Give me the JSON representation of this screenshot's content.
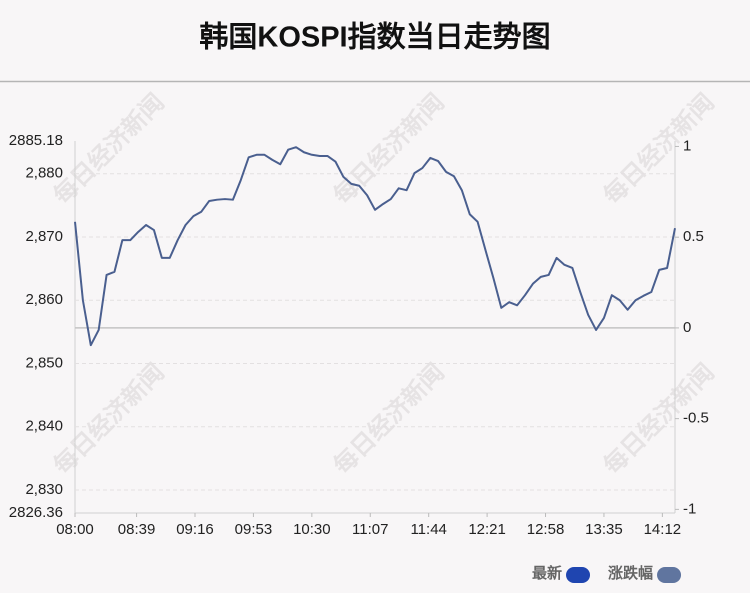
{
  "chart_data": {
    "type": "line",
    "title": "韩国KOSPI指数当日走势图",
    "watermark": "每日经济新闻",
    "x": [
      "08:00",
      "08:05",
      "08:10",
      "08:15",
      "08:20",
      "08:25",
      "08:30",
      "08:35",
      "08:40",
      "08:45",
      "08:50",
      "08:55",
      "09:00",
      "09:05",
      "09:10",
      "09:15",
      "09:20",
      "09:25",
      "09:30",
      "09:35",
      "09:40",
      "09:45",
      "09:50",
      "09:55",
      "10:00",
      "10:05",
      "10:10",
      "10:15",
      "10:20",
      "10:25",
      "10:30",
      "10:35",
      "10:40",
      "10:45",
      "10:50",
      "10:55",
      "11:00",
      "11:05",
      "11:10",
      "11:15",
      "11:20",
      "11:25",
      "11:30",
      "11:35",
      "11:40",
      "11:45",
      "11:50",
      "11:55",
      "12:00",
      "12:05",
      "12:10",
      "12:15",
      "12:20",
      "12:25",
      "12:30",
      "12:35",
      "12:40",
      "12:45",
      "12:50",
      "12:55",
      "13:00",
      "13:05",
      "13:10",
      "13:15",
      "13:20",
      "13:25",
      "13:30",
      "13:35",
      "13:40",
      "13:45",
      "13:50",
      "13:55",
      "14:00",
      "14:05",
      "14:10",
      "14:15",
      "14:20"
    ],
    "series": [
      {
        "name": "最新",
        "color": "#4a5f8f",
        "legend_color": "#1f45b0",
        "values": [
          2872.4,
          2860.0,
          2852.9,
          2855.3,
          2864.0,
          2864.5,
          2869.5,
          2869.5,
          2870.8,
          2871.9,
          2871.1,
          2866.7,
          2866.7,
          2869.5,
          2871.9,
          2873.3,
          2874.0,
          2875.7,
          2875.9,
          2876.0,
          2875.9,
          2879.0,
          2882.6,
          2883.0,
          2883.0,
          2882.2,
          2881.5,
          2883.8,
          2884.2,
          2883.4,
          2883.0,
          2882.8,
          2882.8,
          2881.9,
          2879.5,
          2878.4,
          2878.1,
          2876.6,
          2874.3,
          2875.2,
          2876.0,
          2877.7,
          2877.4,
          2880.1,
          2880.9,
          2882.5,
          2882.0,
          2880.3,
          2879.6,
          2877.4,
          2873.6,
          2872.4,
          2867.9,
          2863.5,
          2858.8,
          2859.7,
          2859.2,
          2860.8,
          2862.6,
          2863.7,
          2864.0,
          2866.7,
          2865.6,
          2865.1,
          2861.3,
          2857.7,
          2855.3,
          2857.2,
          2860.8,
          2860.0,
          2858.5,
          2860.0,
          2860.7,
          2861.3,
          2864.8,
          2865.1,
          2871.4
        ]
      }
    ],
    "legend": [
      {
        "name": "最新",
        "color": "#1f45b0"
      },
      {
        "name": "涨跌幅",
        "color": "#60759f"
      }
    ],
    "xlim": [
      "08:00",
      "14:20"
    ],
    "xticks": [
      "08:00",
      "08:39",
      "09:16",
      "09:53",
      "10:30",
      "11:07",
      "11:44",
      "12:21",
      "12:58",
      "13:35",
      "14:12"
    ],
    "ylim": [
      2826.36,
      2885.18
    ],
    "yticks": [
      2826.36,
      {
        "value": 2830,
        "label": "2,830"
      },
      {
        "value": 2840,
        "label": "2,840"
      },
      {
        "value": 2850,
        "label": "2,850"
      },
      {
        "value": 2860,
        "label": "2,860"
      },
      {
        "value": 2870,
        "label": "2,870"
      },
      {
        "value": 2880,
        "label": "2,880"
      },
      2885.18
    ],
    "ytick_labels_exact": [
      "2,826.36",
      "2,885.18"
    ],
    "y2lim": [
      -1.02,
      1.03
    ],
    "y2ticks": [
      -1,
      -0.5,
      0,
      0.5,
      1
    ],
    "grid": true
  }
}
